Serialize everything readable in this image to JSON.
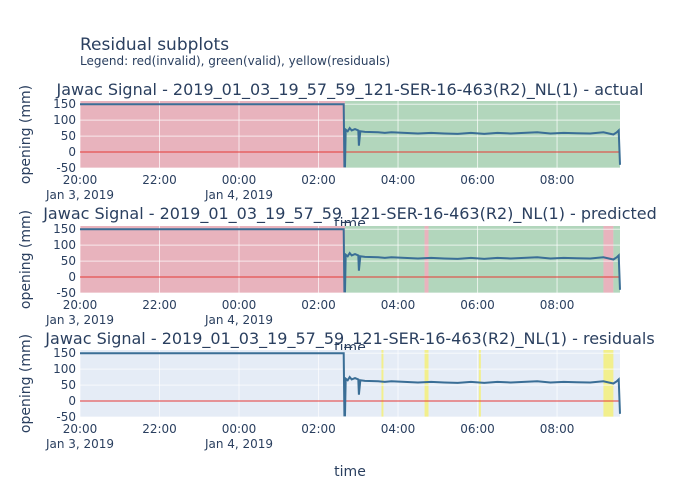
{
  "title": "Residual subplots",
  "subtitle": "Legend: red(invalid), green(valid), yellow(residuals)",
  "chart_data": [
    {
      "type": "line",
      "title": "Jawac Signal - 2019_01_03_19_57_59_121-SER-16-463(R2)_NL(1) - actual",
      "xlabel": "time",
      "ylabel": "opening (mm)",
      "x_ticks": [
        "20:00",
        "22:00",
        "00:00",
        "02:00",
        "04:00",
        "06:00",
        "08:00"
      ],
      "x_tick_dates": [
        "Jan 3, 2019",
        "",
        "Jan 4, 2019",
        "",
        "",
        "",
        ""
      ],
      "y_ticks": [
        150,
        100,
        50,
        0,
        -50
      ],
      "ylim": [
        -50,
        160
      ],
      "xlim": [
        "2019-01-03 20:00",
        "2019-01-04 09:35"
      ],
      "background_regions": [
        {
          "type": "invalid",
          "color": "#e8a0aa",
          "from": "2019-01-03 20:00",
          "to": "2019-01-04 02:40"
        },
        {
          "type": "valid",
          "color": "#a0cfa8",
          "from": "2019-01-04 02:40",
          "to": "2019-01-04 09:35"
        }
      ],
      "series": [
        {
          "color": "#3a6e96",
          "x": [
            "2019-01-03 20:00",
            "2019-01-04 02:38",
            "2019-01-04 02:39",
            "2019-01-04 02:40",
            "2019-01-04 02:41",
            "2019-01-04 02:44",
            "2019-01-04 02:47",
            "2019-01-04 02:50",
            "2019-01-04 02:55",
            "2019-01-04 03:00",
            "2019-01-04 03:01",
            "2019-01-04 03:03",
            "2019-01-04 03:10",
            "2019-01-04 03:30",
            "2019-01-04 03:40",
            "2019-01-04 03:50",
            "2019-01-04 04:10",
            "2019-01-04 04:30",
            "2019-01-04 04:50",
            "2019-01-04 05:10",
            "2019-01-04 05:30",
            "2019-01-04 05:50",
            "2019-01-04 06:10",
            "2019-01-04 06:30",
            "2019-01-04 06:50",
            "2019-01-04 07:10",
            "2019-01-04 07:30",
            "2019-01-04 07:50",
            "2019-01-04 08:10",
            "2019-01-04 08:30",
            "2019-01-04 08:50",
            "2019-01-04 09:10",
            "2019-01-04 09:25",
            "2019-01-04 09:30",
            "2019-01-04 09:33",
            "2019-01-04 09:35"
          ],
          "y": [
            150,
            150,
            -45,
            -45,
            70,
            65,
            75,
            68,
            72,
            68,
            20,
            65,
            63,
            62,
            60,
            62,
            60,
            58,
            60,
            58,
            57,
            60,
            57,
            60,
            58,
            60,
            62,
            58,
            60,
            59,
            58,
            62,
            55,
            62,
            68,
            -40
          ]
        }
      ]
    },
    {
      "type": "line",
      "title": "Jawac Signal - 2019_01_03_19_57_59_121-SER-16-463(R2)_NL(1) - predicted",
      "xlabel": "time",
      "ylabel": "opening (mm)",
      "x_ticks": [
        "20:00",
        "22:00",
        "00:00",
        "02:00",
        "04:00",
        "06:00",
        "08:00"
      ],
      "x_tick_dates": [
        "Jan 3, 2019",
        "",
        "Jan 4, 2019",
        "",
        "",
        "",
        ""
      ],
      "y_ticks": [
        150,
        100,
        50,
        0,
        -50
      ],
      "ylim": [
        -50,
        160
      ],
      "xlim": [
        "2019-01-03 20:00",
        "2019-01-04 09:35"
      ],
      "background_regions": [
        {
          "type": "invalid",
          "color": "#e8a0aa",
          "from": "2019-01-03 20:00",
          "to": "2019-01-04 02:40"
        },
        {
          "type": "valid",
          "color": "#a0cfa8",
          "from": "2019-01-04 02:40",
          "to": "2019-01-04 04:40"
        },
        {
          "type": "invalid",
          "color": "#e8a0aa",
          "from": "2019-01-04 04:40",
          "to": "2019-01-04 04:46"
        },
        {
          "type": "valid",
          "color": "#a0cfa8",
          "from": "2019-01-04 04:46",
          "to": "2019-01-04 09:10"
        },
        {
          "type": "invalid",
          "color": "#e8a0aa",
          "from": "2019-01-04 09:10",
          "to": "2019-01-04 09:25"
        },
        {
          "type": "valid",
          "color": "#a0cfa8",
          "from": "2019-01-04 09:25",
          "to": "2019-01-04 09:35"
        }
      ],
      "series": [
        {
          "color": "#3a6e96",
          "x": [
            "2019-01-03 20:00",
            "2019-01-04 02:38",
            "2019-01-04 02:39",
            "2019-01-04 02:40",
            "2019-01-04 02:41",
            "2019-01-04 02:44",
            "2019-01-04 02:47",
            "2019-01-04 02:50",
            "2019-01-04 02:55",
            "2019-01-04 03:00",
            "2019-01-04 03:01",
            "2019-01-04 03:03",
            "2019-01-04 03:10",
            "2019-01-04 03:30",
            "2019-01-04 03:40",
            "2019-01-04 03:50",
            "2019-01-04 04:10",
            "2019-01-04 04:30",
            "2019-01-04 04:50",
            "2019-01-04 05:10",
            "2019-01-04 05:30",
            "2019-01-04 05:50",
            "2019-01-04 06:10",
            "2019-01-04 06:30",
            "2019-01-04 06:50",
            "2019-01-04 07:10",
            "2019-01-04 07:30",
            "2019-01-04 07:50",
            "2019-01-04 08:10",
            "2019-01-04 08:30",
            "2019-01-04 08:50",
            "2019-01-04 09:10",
            "2019-01-04 09:25",
            "2019-01-04 09:30",
            "2019-01-04 09:33",
            "2019-01-04 09:35"
          ],
          "y": [
            150,
            150,
            -45,
            -45,
            70,
            65,
            75,
            68,
            72,
            68,
            20,
            65,
            63,
            62,
            60,
            62,
            60,
            58,
            60,
            58,
            57,
            60,
            57,
            60,
            58,
            60,
            62,
            58,
            60,
            59,
            58,
            62,
            55,
            62,
            68,
            -40
          ]
        }
      ]
    },
    {
      "type": "line",
      "title": "Jawac Signal - 2019_01_03_19_57_59_121-SER-16-463(R2)_NL(1) - residuals",
      "xlabel": "time",
      "ylabel": "opening (mm)",
      "x_ticks": [
        "20:00",
        "22:00",
        "00:00",
        "02:00",
        "04:00",
        "06:00",
        "08:00"
      ],
      "x_tick_dates": [
        "Jan 3, 2019",
        "",
        "Jan 4, 2019",
        "",
        "",
        "",
        ""
      ],
      "y_ticks": [
        150,
        100,
        50,
        0,
        -50
      ],
      "ylim": [
        -50,
        160
      ],
      "xlim": [
        "2019-01-03 20:00",
        "2019-01-04 09:35"
      ],
      "background_regions": [
        {
          "type": "residual",
          "color": "#f5f07a",
          "from": "2019-01-04 03:35",
          "to": "2019-01-04 03:38"
        },
        {
          "type": "residual",
          "color": "#f5f07a",
          "from": "2019-01-04 04:40",
          "to": "2019-01-04 04:46"
        },
        {
          "type": "residual",
          "color": "#f5f07a",
          "from": "2019-01-04 06:02",
          "to": "2019-01-04 06:05"
        },
        {
          "type": "residual",
          "color": "#f5f07a",
          "from": "2019-01-04 09:10",
          "to": "2019-01-04 09:25"
        }
      ],
      "series": [
        {
          "color": "#3a6e96",
          "x": [
            "2019-01-03 20:00",
            "2019-01-04 02:38",
            "2019-01-04 02:39",
            "2019-01-04 02:40",
            "2019-01-04 02:41",
            "2019-01-04 02:44",
            "2019-01-04 02:47",
            "2019-01-04 02:50",
            "2019-01-04 02:55",
            "2019-01-04 03:00",
            "2019-01-04 03:01",
            "2019-01-04 03:03",
            "2019-01-04 03:10",
            "2019-01-04 03:30",
            "2019-01-04 03:40",
            "2019-01-04 03:50",
            "2019-01-04 04:10",
            "2019-01-04 04:30",
            "2019-01-04 04:50",
            "2019-01-04 05:10",
            "2019-01-04 05:30",
            "2019-01-04 05:50",
            "2019-01-04 06:10",
            "2019-01-04 06:30",
            "2019-01-04 06:50",
            "2019-01-04 07:10",
            "2019-01-04 07:30",
            "2019-01-04 07:50",
            "2019-01-04 08:10",
            "2019-01-04 08:30",
            "2019-01-04 08:50",
            "2019-01-04 09:10",
            "2019-01-04 09:25",
            "2019-01-04 09:30",
            "2019-01-04 09:33",
            "2019-01-04 09:35"
          ],
          "y": [
            150,
            150,
            -45,
            -45,
            70,
            65,
            75,
            68,
            72,
            68,
            20,
            65,
            63,
            62,
            60,
            62,
            60,
            58,
            60,
            58,
            57,
            60,
            57,
            60,
            58,
            60,
            62,
            58,
            60,
            59,
            58,
            62,
            55,
            62,
            68,
            -40
          ]
        }
      ]
    }
  ]
}
